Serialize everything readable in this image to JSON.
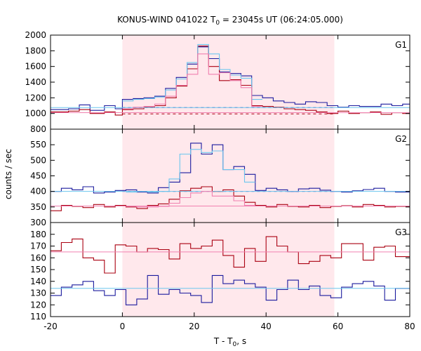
{
  "chart_data": {
    "type": "line",
    "title": "KONUS-WIND 041022 T",
    "title_sub": "0",
    "title_rest": " = 23045s UT (06:24:05.000)",
    "xlabel": "T - T",
    "xlabel_sub": "0",
    "xlabel_rest": ", s",
    "ylabel": "counts / sec",
    "xlim": [
      -20,
      80
    ],
    "x_ticks": [
      -20,
      0,
      20,
      40,
      60,
      80
    ],
    "shaded_interval": [
      0,
      59
    ],
    "shade_color": "#ffe8ec",
    "panels": [
      {
        "name": "G1",
        "ylim": [
          800,
          2000
        ],
        "y_ticks": [
          800,
          1000,
          1200,
          1400,
          1600,
          1800,
          2000
        ],
        "step_edges": [
          -20,
          -15,
          -12,
          -9,
          -5,
          -2,
          0,
          3,
          6,
          9,
          12,
          15,
          18,
          21,
          24,
          27,
          30,
          33,
          36,
          39,
          42,
          45,
          48,
          51,
          54,
          57,
          60,
          63,
          66,
          69,
          72,
          75,
          78,
          80
        ],
        "series": [
          {
            "name": "blue",
            "color": "#1b1b9e",
            "values": [
              1050,
              1060,
              1110,
              1040,
              1100,
              1060,
              1180,
              1190,
              1200,
              1220,
              1320,
              1460,
              1630,
              1850,
              1700,
              1530,
              1510,
              1480,
              1230,
              1200,
              1160,
              1140,
              1120,
              1150,
              1140,
              1100,
              1080,
              1100,
              1090,
              1090,
              1120,
              1100,
              1120
            ],
            "dotted_mean": 1075
          },
          {
            "name": "red",
            "color": "#aa0011",
            "values": [
              1020,
              1030,
              1050,
              1000,
              1020,
              980,
              1050,
              1060,
              1080,
              1100,
              1200,
              1350,
              1570,
              1860,
              1600,
              1420,
              1430,
              1360,
              1100,
              1090,
              1080,
              1060,
              1050,
              1040,
              1020,
              1000,
              1030,
              1000,
              1010,
              1020,
              990,
              1010,
              1000
            ],
            "dotted_mean": 995
          },
          {
            "name": "light-blue",
            "color": "#6cc6ee",
            "values": [
              null,
              null,
              null,
              null,
              null,
              null,
              1160,
              1180,
              1190,
              1210,
              1300,
              1440,
              1650,
              1880,
              1760,
              1560,
              1490,
              1450,
              1180,
              null,
              null,
              null,
              null,
              null,
              null,
              null,
              null,
              null,
              null,
              null,
              null,
              null,
              null
            ],
            "mean_line": 1075
          },
          {
            "name": "pink",
            "color": "#f080b0",
            "values": [
              null,
              null,
              null,
              null,
              null,
              null,
              1060,
              1080,
              1090,
              1120,
              1220,
              1360,
              1500,
              1760,
              1500,
              1520,
              1420,
              1330,
              1090,
              null,
              null,
              null,
              null,
              null,
              null,
              null,
              null,
              null,
              null,
              null,
              null,
              null,
              null
            ],
            "mean_line": 1010
          }
        ]
      },
      {
        "name": "G2",
        "ylim": [
          300,
          600
        ],
        "y_ticks": [
          300,
          350,
          400,
          450,
          500,
          550
        ],
        "step_edges": [
          -20,
          -17,
          -14,
          -11,
          -8,
          -5,
          -2,
          1,
          4,
          7,
          10,
          13,
          16,
          19,
          22,
          25,
          28,
          31,
          34,
          37,
          40,
          43,
          46,
          49,
          52,
          55,
          58,
          61,
          64,
          67,
          70,
          73,
          76,
          80
        ],
        "series": [
          {
            "name": "blue",
            "color": "#1b1b9e",
            "values": [
              400,
              410,
              405,
              415,
              395,
              398,
              403,
              405,
              398,
              395,
              412,
              430,
              460,
              555,
              520,
              550,
              470,
              480,
              455,
              403,
              410,
              405,
              400,
              408,
              410,
              404,
              400,
              398,
              402,
              406,
              410,
              400,
              398
            ],
            "dotted_mean": 400
          },
          {
            "name": "red",
            "color": "#aa0011",
            "values": [
              338,
              355,
              352,
              348,
              358,
              350,
              355,
              350,
              345,
              355,
              360,
              375,
              402,
              410,
              415,
              400,
              405,
              385,
              365,
              355,
              350,
              358,
              352,
              350,
              355,
              348,
              352,
              354,
              350,
              358,
              355,
              350,
              352
            ],
            "dotted_mean": 353
          },
          {
            "name": "light-blue",
            "color": "#6cc6ee",
            "values": [
              null,
              null,
              null,
              null,
              null,
              null,
              null,
              398,
              400,
              398,
              400,
              440,
              520,
              535,
              525,
              530,
              470,
              470,
              430,
              null,
              null,
              null,
              null,
              null,
              null,
              null,
              null,
              null,
              null,
              null,
              null,
              null,
              null
            ],
            "mean_line": 400
          },
          {
            "name": "pink",
            "color": "#f080b0",
            "values": [
              null,
              null,
              null,
              null,
              null,
              null,
              null,
              352,
              350,
              350,
              352,
              362,
              380,
              395,
              400,
              385,
              385,
              370,
              355,
              null,
              null,
              null,
              null,
              null,
              null,
              null,
              null,
              null,
              null,
              null,
              null,
              null,
              null
            ],
            "mean_line": 353
          }
        ]
      },
      {
        "name": "G3",
        "ylim": [
          110,
          190
        ],
        "y_ticks": [
          110,
          120,
          130,
          140,
          150,
          160,
          170,
          180
        ],
        "step_edges": [
          -20,
          -17,
          -14,
          -11,
          -8,
          -5,
          -2,
          1,
          4,
          7,
          10,
          13,
          16,
          19,
          22,
          25,
          28,
          31,
          34,
          37,
          40,
          43,
          46,
          49,
          52,
          55,
          58,
          61,
          64,
          67,
          70,
          73,
          76,
          80
        ],
        "series": [
          {
            "name": "red",
            "color": "#aa0011",
            "values": [
              166,
              173,
              176,
              160,
              158,
              147,
              171,
              170,
              165,
              168,
              167,
              159,
              172,
              168,
              170,
              175,
              162,
              152,
              168,
              157,
              178,
              170,
              165,
              155,
              157,
              162,
              160,
              172,
              172,
              158,
              169,
              170,
              161
            ],
            "mean_line": 165,
            "mean_color": "#f080b0"
          },
          {
            "name": "blue",
            "color": "#1b1b9e",
            "values": [
              128,
              135,
              137,
              140,
              132,
              128,
              133,
              120,
              125,
              145,
              129,
              133,
              130,
              128,
              122,
              145,
              138,
              141,
              138,
              135,
              124,
              133,
              141,
              133,
              136,
              128,
              126,
              135,
              138,
              140,
              136,
              124,
              134
            ],
            "mean_line": 134,
            "mean_color": "#6cc6ee"
          }
        ]
      }
    ]
  }
}
